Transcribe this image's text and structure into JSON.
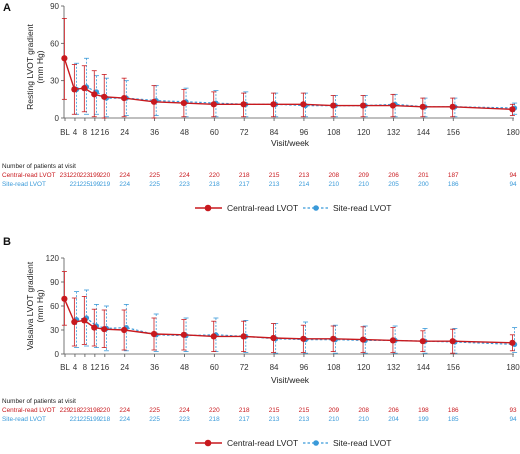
{
  "colors": {
    "central": "#c8191e",
    "site": "#3a9ad9",
    "axis": "#555555"
  },
  "panel_a": {
    "letter": "A",
    "ylabel_line1": "Resting LVOT gradient",
    "ylabel_line2": "(mm Hg)"
  },
  "panel_b": {
    "letter": "B",
    "ylabel_line1": "Valsalva LVOT gradient",
    "ylabel_line2": "(mm Hg)"
  },
  "xlabel": "Visit/week",
  "n_header": "Number of patients at visit",
  "row_labels": {
    "central": "Central-read LVOT",
    "site": "Site-read LVOT"
  },
  "legend": {
    "central": "Central-read LVOT",
    "site": "Site-read LVOT"
  },
  "chart_data": [
    {
      "type": "line",
      "panel": "A",
      "xlabel": "Visit/week",
      "ylabel": "Resting LVOT gradient (mm Hg)",
      "ylim": [
        0,
        90
      ],
      "yticks": [
        0,
        30,
        60,
        90
      ],
      "x_ticks": [
        "BL",
        "4",
        "8",
        "12",
        "16",
        "24",
        "36",
        "48",
        "60",
        "72",
        "84",
        "96",
        "108",
        "120",
        "132",
        "144",
        "156",
        "180"
      ],
      "x_tick_weeks": [
        0,
        4,
        8,
        12,
        16,
        24,
        36,
        48,
        60,
        72,
        84,
        96,
        108,
        120,
        132,
        144,
        156,
        180
      ],
      "series": [
        {
          "name": "Central-read LVOT",
          "mean": [
            48,
            23,
            24,
            19,
            17,
            16,
            13,
            12,
            11,
            11,
            11,
            11,
            10,
            10,
            10,
            9,
            9,
            7
          ],
          "upper": [
            80,
            43,
            42,
            38,
            35,
            32,
            26,
            23,
            21,
            20,
            20,
            20,
            18,
            18,
            19,
            16,
            16,
            11
          ],
          "lower": [
            15,
            3,
            5,
            1,
            0,
            1,
            0,
            1,
            1,
            1,
            1,
            1,
            1,
            1,
            1,
            1,
            1,
            2
          ]
        },
        {
          "name": "Site-read LVOT",
          "mean": [
            null,
            23,
            25,
            21,
            16,
            16,
            14,
            13,
            12,
            11,
            11,
            10,
            10,
            10,
            11,
            9,
            9,
            8
          ],
          "upper": [
            null,
            44,
            48,
            34,
            32,
            30,
            26,
            24,
            22,
            21,
            20,
            20,
            18,
            18,
            19,
            16,
            16,
            12
          ],
          "lower": [
            null,
            3,
            3,
            3,
            1,
            2,
            2,
            1,
            1,
            1,
            1,
            1,
            1,
            1,
            1,
            1,
            1,
            3
          ]
        }
      ],
      "n_at_visit": {
        "Central-read LVOT": [
          "231",
          "220",
          "223",
          "199",
          "220",
          "224",
          "225",
          "224",
          "220",
          "218",
          "215",
          "213",
          "208",
          "209",
          "206",
          "201",
          "187",
          "94"
        ],
        "Site-read LVOT": [
          "",
          "221",
          "225",
          "199",
          "219",
          "224",
          "225",
          "223",
          "218",
          "217",
          "213",
          "214",
          "210",
          "210",
          "205",
          "200",
          "186",
          "94"
        ]
      }
    },
    {
      "type": "line",
      "panel": "B",
      "xlabel": "Visit/week",
      "ylabel": "Valsalva LVOT gradient (mm Hg)",
      "ylim": [
        0,
        120
      ],
      "yticks": [
        0,
        30,
        60,
        90,
        120
      ],
      "x_ticks": [
        "BL",
        "4",
        "8",
        "12",
        "16",
        "24",
        "36",
        "48",
        "60",
        "72",
        "84",
        "96",
        "108",
        "120",
        "132",
        "144",
        "156",
        "180"
      ],
      "x_tick_weeks": [
        0,
        4,
        8,
        12,
        16,
        24,
        36,
        48,
        60,
        72,
        84,
        96,
        108,
        120,
        132,
        144,
        156,
        180
      ],
      "series": [
        {
          "name": "Central-read LVOT",
          "mean": [
            69,
            40,
            42,
            33,
            31,
            30,
            25,
            24,
            22,
            22,
            20,
            19,
            19,
            18,
            17,
            16,
            16,
            14
          ],
          "upper": [
            103,
            70,
            72,
            56,
            55,
            55,
            45,
            43,
            41,
            41,
            38,
            36,
            35,
            34,
            33,
            29,
            31,
            24
          ],
          "lower": [
            36,
            10,
            12,
            10,
            8,
            5,
            5,
            5,
            3,
            3,
            2,
            2,
            3,
            2,
            2,
            3,
            1,
            4
          ]
        },
        {
          "name": "Site-read LVOT",
          "mean": [
            null,
            43,
            45,
            35,
            32,
            33,
            24,
            23,
            24,
            22,
            19,
            18,
            18,
            17,
            17,
            16,
            15,
            12
          ],
          "upper": [
            null,
            78,
            80,
            62,
            60,
            62,
            50,
            45,
            45,
            42,
            38,
            40,
            36,
            35,
            35,
            32,
            32,
            33
          ],
          "lower": [
            null,
            8,
            10,
            8,
            4,
            4,
            3,
            3,
            3,
            2,
            1,
            1,
            1,
            1,
            1,
            1,
            1,
            2
          ]
        }
      ],
      "n_at_visit": {
        "Central-read LVOT": [
          "229",
          "218",
          "223",
          "198",
          "220",
          "224",
          "225",
          "224",
          "220",
          "218",
          "215",
          "215",
          "209",
          "208",
          "206",
          "198",
          "186",
          "93"
        ],
        "Site-read LVOT": [
          "",
          "221",
          "225",
          "199",
          "218",
          "224",
          "225",
          "223",
          "218",
          "217",
          "213",
          "213",
          "210",
          "210",
          "204",
          "199",
          "185",
          "94"
        ]
      }
    }
  ]
}
